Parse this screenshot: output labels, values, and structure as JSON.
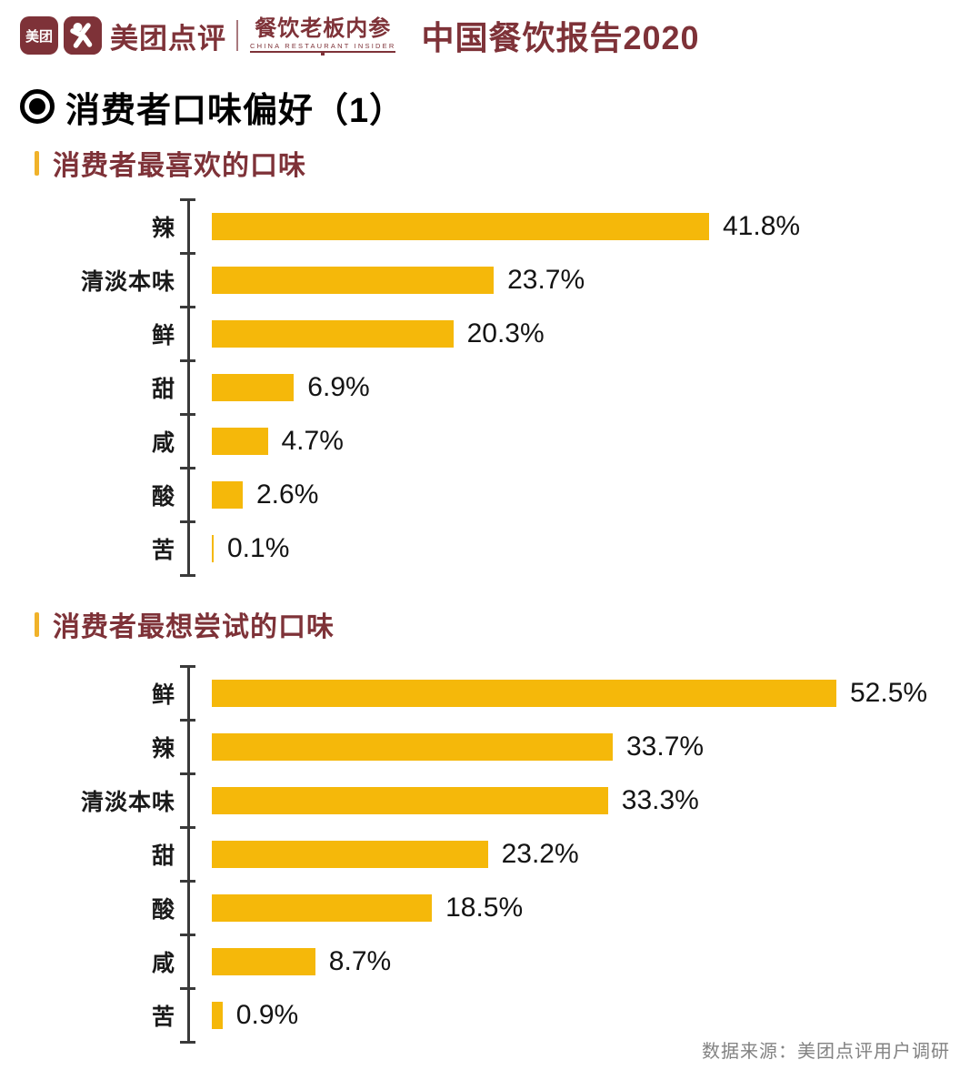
{
  "header": {
    "app_icon_text": "美团",
    "brand": "美团点评",
    "sub_brand": "餐饮老板内参",
    "sub_brand_en": "CHINA RESTAURANT INSIDER",
    "report_title": "中国餐饮报告2020"
  },
  "page": {
    "section_title": "消费者口味偏好（1）"
  },
  "footer": {
    "source": "数据来源：美团点评用户调研"
  },
  "colors": {
    "brand_maroon": "#7e3238",
    "bar_gold": "#f5b80a",
    "axis_gray": "#3a3a3a",
    "footer_gray": "#828282"
  },
  "chart_data": [
    {
      "type": "bar",
      "orientation": "horizontal",
      "title": "消费者最喜欢的口味",
      "categories": [
        "辣",
        "清淡本味",
        "鲜",
        "甜",
        "咸",
        "酸",
        "苦"
      ],
      "values": [
        41.8,
        23.7,
        20.3,
        6.9,
        4.7,
        2.6,
        0.1
      ],
      "value_suffix": "%",
      "xlim": [
        0,
        52.5
      ],
      "grid": false,
      "legend": false,
      "bar_color": "#f5b80a"
    },
    {
      "type": "bar",
      "orientation": "horizontal",
      "title": "消费者最想尝试的口味",
      "categories": [
        "鲜",
        "辣",
        "清淡本味",
        "甜",
        "酸",
        "咸",
        "苦"
      ],
      "values": [
        52.5,
        33.7,
        33.3,
        23.2,
        18.5,
        8.7,
        0.9
      ],
      "value_suffix": "%",
      "xlim": [
        0,
        52.5
      ],
      "grid": false,
      "legend": false,
      "bar_color": "#f5b80a"
    }
  ]
}
